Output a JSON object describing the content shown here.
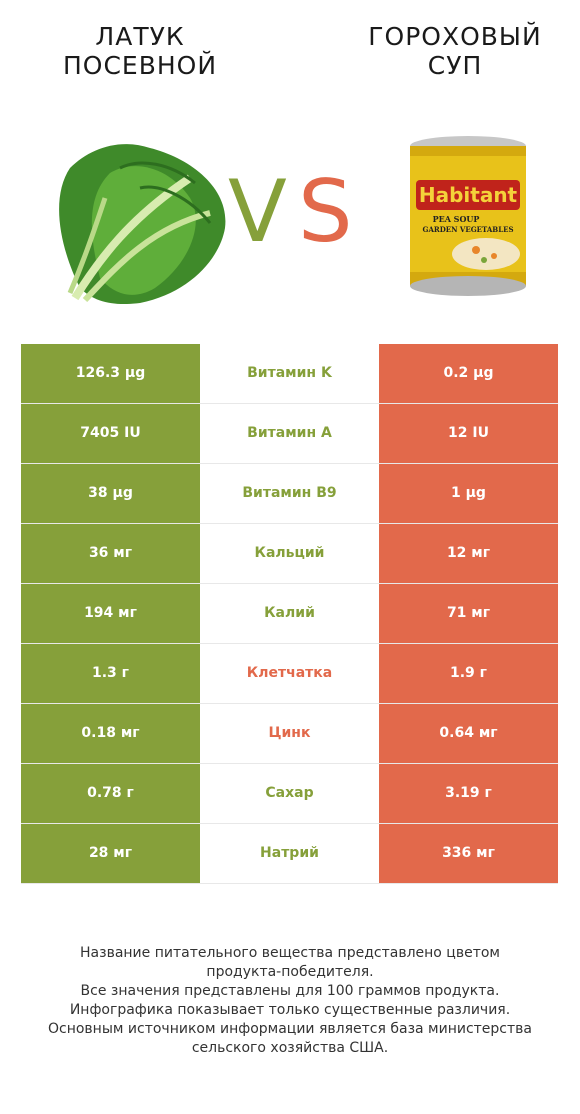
{
  "header": {
    "left_title_line1": "ЛАТУК",
    "left_title_line2": "ПОСЕВНОЙ",
    "right_title_line1": "ГОРОХОВЫЙ",
    "right_title_line2": "СУП",
    "vs_v": "V",
    "vs_s": "S"
  },
  "can_label": {
    "brand": "Habitant",
    "line1": "PEA SOUP",
    "line2": "GARDEN VEGETABLES"
  },
  "colors": {
    "left_winner": "#86a03a",
    "right_winner": "#e2694b"
  },
  "rows": [
    {
      "left": "126.3 µg",
      "name": "Витамин K",
      "right": "0.2 µg",
      "winner": "left"
    },
    {
      "left": "7405 IU",
      "name": "Витамин A",
      "right": "12 IU",
      "winner": "left"
    },
    {
      "left": "38 µg",
      "name": "Витамин B9",
      "right": "1 µg",
      "winner": "left"
    },
    {
      "left": "36 мг",
      "name": "Кальций",
      "right": "12 мг",
      "winner": "left"
    },
    {
      "left": "194 мг",
      "name": "Калий",
      "right": "71 мг",
      "winner": "left"
    },
    {
      "left": "1.3 г",
      "name": "Клетчатка",
      "right": "1.9 г",
      "winner": "right"
    },
    {
      "left": "0.18 мг",
      "name": "Цинк",
      "right": "0.64 мг",
      "winner": "right"
    },
    {
      "left": "0.78 г",
      "name": "Сахар",
      "right": "3.19 г",
      "winner": "left"
    },
    {
      "left": "28 мг",
      "name": "Натрий",
      "right": "336 мг",
      "winner": "left"
    }
  ],
  "footer": {
    "line1": "Название питательного вещества представлено цветом",
    "line2": "продукта-победителя.",
    "line3": "Все значения представлены для 100 граммов продукта.",
    "line4": "Инфографика показывает только существенные различия.",
    "line5": "Основным источником информации является база министерства",
    "line6": "сельского хозяйства США."
  }
}
